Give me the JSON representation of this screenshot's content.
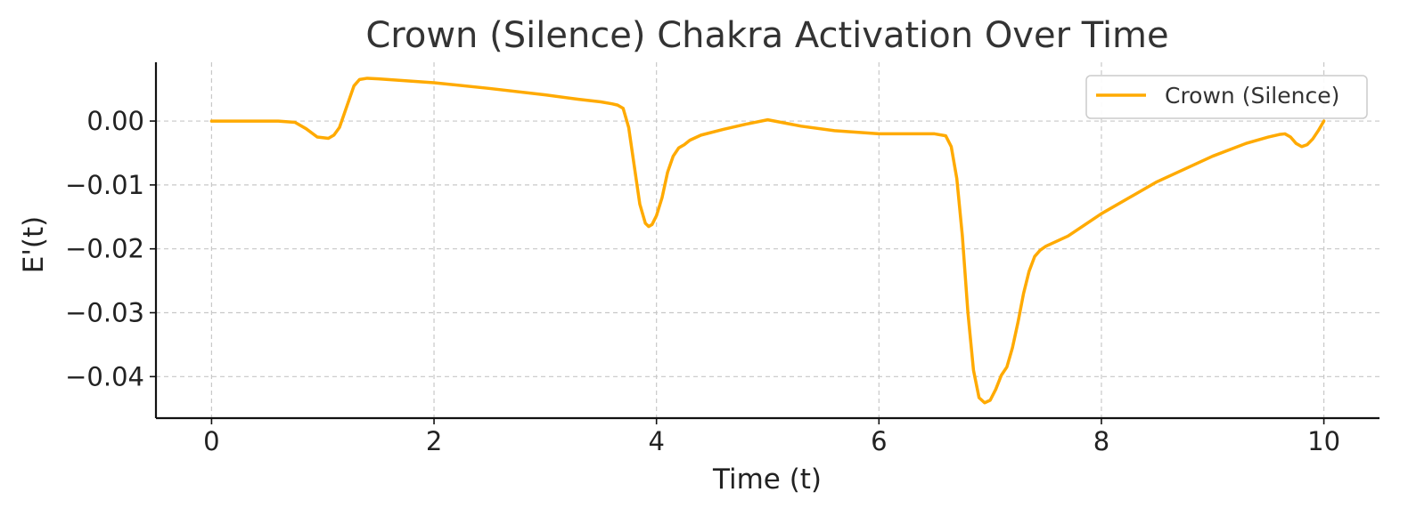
{
  "chart_data": {
    "type": "line",
    "title": "Crown (Silence) Chakra Activation Over Time",
    "xlabel": "Time (t)",
    "ylabel": "E'(t)",
    "xlim": [
      -0.5,
      10.5
    ],
    "ylim": [
      -0.0465,
      0.0092
    ],
    "xticks": [
      0,
      2,
      4,
      6,
      8,
      10
    ],
    "xtick_labels": [
      "0",
      "2",
      "4",
      "6",
      "8",
      "10"
    ],
    "yticks": [
      0.0,
      -0.01,
      -0.02,
      -0.03,
      -0.04
    ],
    "ytick_labels": [
      "0.00",
      "−0.01",
      "−0.02",
      "−0.03",
      "−0.04"
    ],
    "grid": true,
    "legend_position": "upper right",
    "series": [
      {
        "name": "Crown (Silence)",
        "color": "#ffaa00",
        "x": [
          0,
          0.6,
          0.75,
          0.85,
          0.95,
          1.05,
          1.1,
          1.15,
          1.22,
          1.28,
          1.33,
          1.4,
          1.5,
          2.0,
          2.5,
          3.0,
          3.3,
          3.5,
          3.6,
          3.65,
          3.7,
          3.75,
          3.8,
          3.85,
          3.9,
          3.93,
          3.96,
          4.0,
          4.05,
          4.1,
          4.15,
          4.2,
          4.25,
          4.3,
          4.4,
          4.6,
          4.8,
          5.0,
          5.3,
          5.6,
          6.0,
          6.3,
          6.5,
          6.6,
          6.65,
          6.7,
          6.75,
          6.8,
          6.85,
          6.9,
          6.95,
          7.0,
          7.05,
          7.1,
          7.15,
          7.2,
          7.25,
          7.3,
          7.35,
          7.4,
          7.45,
          7.5,
          7.7,
          8.0,
          8.5,
          9.0,
          9.3,
          9.5,
          9.6,
          9.65,
          9.7,
          9.75,
          9.8,
          9.85,
          9.9,
          9.95,
          10.0
        ],
        "y": [
          0.0,
          0.0,
          -0.0002,
          -0.0012,
          -0.0025,
          -0.0027,
          -0.0022,
          -0.001,
          0.0025,
          0.0055,
          0.0065,
          0.0067,
          0.0066,
          0.006,
          0.0051,
          0.0041,
          0.0034,
          0.003,
          0.0027,
          0.0025,
          0.002,
          -0.001,
          -0.007,
          -0.013,
          -0.016,
          -0.0165,
          -0.0162,
          -0.0148,
          -0.012,
          -0.008,
          -0.0055,
          -0.0042,
          -0.0037,
          -0.003,
          -0.0022,
          -0.0013,
          -0.0005,
          0.0002,
          -0.0008,
          -0.0015,
          -0.002,
          -0.002,
          -0.002,
          -0.0023,
          -0.004,
          -0.009,
          -0.018,
          -0.03,
          -0.039,
          -0.0433,
          -0.0441,
          -0.0437,
          -0.042,
          -0.0398,
          -0.0385,
          -0.0355,
          -0.0315,
          -0.027,
          -0.0235,
          -0.0212,
          -0.0202,
          -0.0196,
          -0.018,
          -0.0145,
          -0.0095,
          -0.0055,
          -0.0035,
          -0.0025,
          -0.0021,
          -0.002,
          -0.0025,
          -0.0035,
          -0.004,
          -0.0037,
          -0.0028,
          -0.0015,
          0.0
        ]
      }
    ]
  }
}
